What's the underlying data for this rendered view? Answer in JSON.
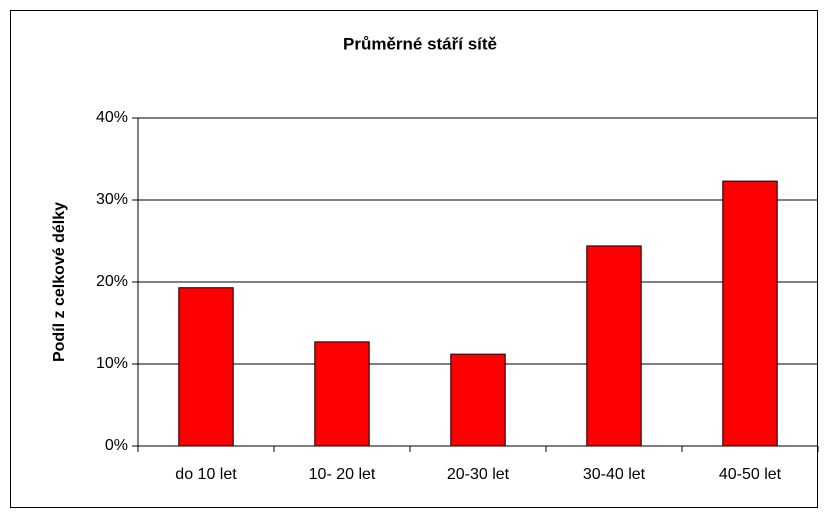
{
  "chart_data": {
    "type": "bar",
    "title": "Průměrné stáří sítě",
    "y_label": "Podíl z celkové délky",
    "categories": [
      "do 10 let",
      "10- 20 let",
      "20-30 let",
      "30-40 let",
      "40-50 let"
    ],
    "values": [
      19.3,
      12.7,
      11.2,
      24.4,
      32.3
    ],
    "color": "#ff0000",
    "ylim": [
      0,
      40
    ],
    "yticks": [
      {
        "value": 0,
        "label": "0%"
      },
      {
        "value": 10,
        "label": "10%"
      },
      {
        "value": 20,
        "label": "20%"
      },
      {
        "value": 30,
        "label": "30%"
      },
      {
        "value": 40,
        "label": "40%"
      }
    ],
    "grid": true
  }
}
